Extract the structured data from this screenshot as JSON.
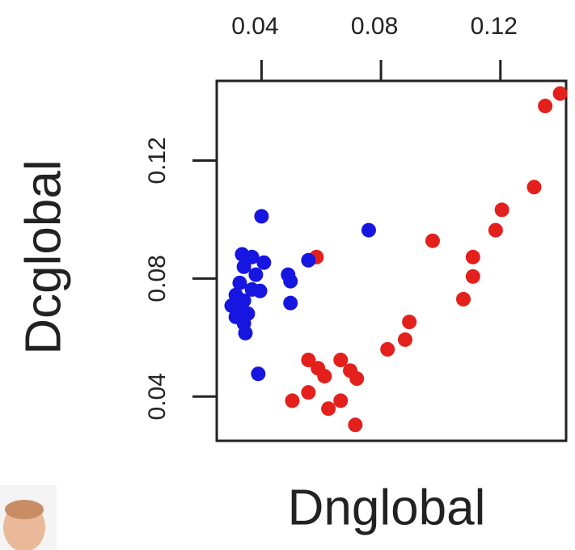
{
  "chart_data": {
    "type": "scatter",
    "xlabel": "Dnglobal",
    "ylabel": "Dcglobal",
    "xlim": [
      0.025,
      0.142
    ],
    "ylim": [
      0.025,
      0.147
    ],
    "xticks": [
      0.04,
      0.08,
      0.12
    ],
    "yticks": [
      0.04,
      0.08,
      0.12
    ],
    "series": [
      {
        "color": "#e3201c",
        "x": [
          0.14,
          0.135,
          0.1313,
          0.1205,
          0.1184,
          0.0973,
          0.1108,
          0.1108,
          0.1076,
          0.0584,
          0.0895,
          0.0881,
          0.0822,
          0.0557,
          0.0589,
          0.0611,
          0.0665,
          0.0697,
          0.0719,
          0.0503,
          0.0557,
          0.0665,
          0.0624,
          0.0714
        ],
        "values": [
          0.1427,
          0.1385,
          0.111,
          0.1033,
          0.0964,
          0.0928,
          0.0873,
          0.0807,
          0.073,
          0.0873,
          0.0653,
          0.0593,
          0.056,
          0.0524,
          0.0496,
          0.0469,
          0.0524,
          0.0488,
          0.0461,
          0.0386,
          0.0414,
          0.0386,
          0.0359,
          0.0304
        ]
      },
      {
        "color": "#1616e0",
        "x": [
          0.04,
          0.0759,
          0.0335,
          0.0368,
          0.0408,
          0.0341,
          0.0381,
          0.0327,
          0.0368,
          0.0395,
          0.0314,
          0.0341,
          0.03,
          0.0327,
          0.0354,
          0.0314,
          0.0341,
          0.0346,
          0.0489,
          0.0497,
          0.0497,
          0.0557,
          0.0389
        ],
        "values": [
          0.1011,
          0.0964,
          0.0882,
          0.0873,
          0.0854,
          0.084,
          0.0813,
          0.0785,
          0.0763,
          0.0758,
          0.0744,
          0.0725,
          0.0708,
          0.0689,
          0.0681,
          0.067,
          0.0648,
          0.0615,
          0.0813,
          0.0791,
          0.0717,
          0.0862,
          0.0477
        ]
      }
    ]
  }
}
